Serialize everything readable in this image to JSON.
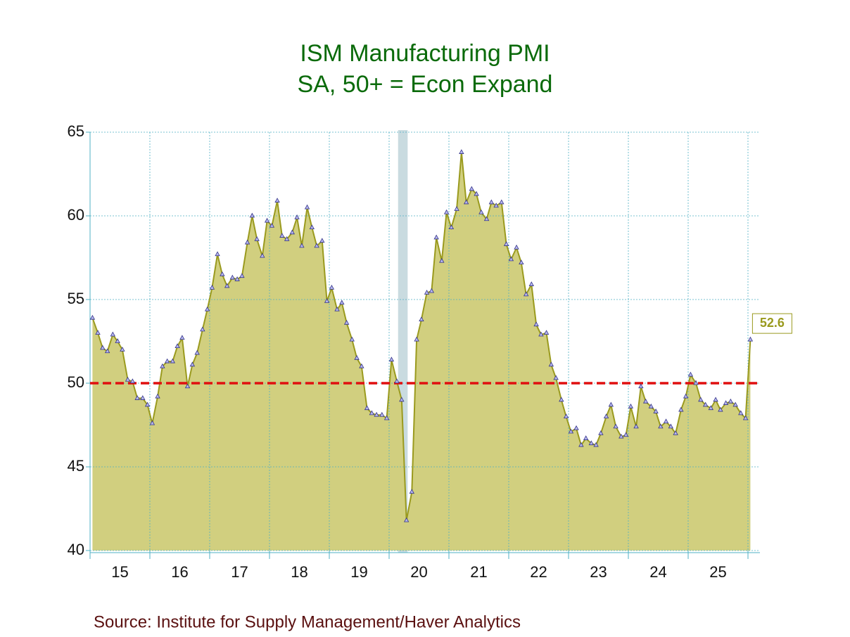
{
  "chart_data": {
    "type": "area",
    "title": "ISM Manufacturing PMI",
    "subtitle": "SA, 50+ = Econ Expand",
    "source": "Source:  Institute for Supply Management/Haver Analytics",
    "x": [
      2015.04,
      2015.13,
      2015.21,
      2015.29,
      2015.38,
      2015.46,
      2015.54,
      2015.63,
      2015.71,
      2015.79,
      2015.88,
      2015.96,
      2016.04,
      2016.13,
      2016.21,
      2016.29,
      2016.38,
      2016.46,
      2016.54,
      2016.63,
      2016.71,
      2016.79,
      2016.88,
      2016.96,
      2017.04,
      2017.13,
      2017.21,
      2017.29,
      2017.38,
      2017.46,
      2017.54,
      2017.63,
      2017.71,
      2017.79,
      2017.88,
      2017.96,
      2018.04,
      2018.13,
      2018.21,
      2018.29,
      2018.38,
      2018.46,
      2018.54,
      2018.63,
      2018.71,
      2018.79,
      2018.88,
      2018.96,
      2019.04,
      2019.13,
      2019.21,
      2019.29,
      2019.38,
      2019.46,
      2019.54,
      2019.63,
      2019.71,
      2019.79,
      2019.88,
      2019.96,
      2020.04,
      2020.13,
      2020.21,
      2020.29,
      2020.38,
      2020.46,
      2020.54,
      2020.63,
      2020.71,
      2020.79,
      2020.88,
      2020.96,
      2021.04,
      2021.13,
      2021.21,
      2021.29,
      2021.38,
      2021.46,
      2021.54,
      2021.63,
      2021.71,
      2021.79,
      2021.88,
      2021.96,
      2022.04,
      2022.13,
      2022.21,
      2022.29,
      2022.38,
      2022.46,
      2022.54,
      2022.63,
      2022.71,
      2022.79,
      2022.88,
      2022.96,
      2023.04,
      2023.13,
      2023.21,
      2023.29,
      2023.38,
      2023.46,
      2023.54,
      2023.63,
      2023.71,
      2023.79,
      2023.88,
      2023.96,
      2024.04,
      2024.13,
      2024.21,
      2024.29,
      2024.38,
      2024.46,
      2024.54,
      2024.63,
      2024.71,
      2024.79,
      2024.88,
      2024.96,
      2025.04,
      2025.13,
      2025.21,
      2025.29,
      2025.38,
      2025.46,
      2025.54,
      2025.63,
      2025.71,
      2025.79,
      2025.88,
      2025.96,
      2026.04
    ],
    "values": [
      53.9,
      53.0,
      52.1,
      51.9,
      52.9,
      52.5,
      52.0,
      50.2,
      50.1,
      49.1,
      49.1,
      48.7,
      47.6,
      49.2,
      51.0,
      51.3,
      51.3,
      52.2,
      52.7,
      49.8,
      51.1,
      51.8,
      53.2,
      54.4,
      55.7,
      57.7,
      56.5,
      55.8,
      56.3,
      56.2,
      56.4,
      58.4,
      60.0,
      58.6,
      57.6,
      59.7,
      59.4,
      60.9,
      58.8,
      58.6,
      59.0,
      59.9,
      58.2,
      60.5,
      59.3,
      58.2,
      58.5,
      54.9,
      55.7,
      54.4,
      54.8,
      53.6,
      52.6,
      51.5,
      51.0,
      48.5,
      48.2,
      48.1,
      48.1,
      47.9,
      51.4,
      50.1,
      49.0,
      41.8,
      43.5,
      52.6,
      53.8,
      55.4,
      55.5,
      58.7,
      57.3,
      60.2,
      59.3,
      60.4,
      63.8,
      60.8,
      61.6,
      61.3,
      60.2,
      59.8,
      60.8,
      60.6,
      60.8,
      58.3,
      57.4,
      58.1,
      57.2,
      55.3,
      55.9,
      53.5,
      52.9,
      53.0,
      51.1,
      50.3,
      49.0,
      48.0,
      47.1,
      47.3,
      46.3,
      46.7,
      46.4,
      46.3,
      47.0,
      48.0,
      48.7,
      47.4,
      46.8,
      46.9,
      48.6,
      47.4,
      49.8,
      48.9,
      48.6,
      48.3,
      47.4,
      47.7,
      47.4,
      47.0,
      48.4,
      49.2,
      50.5,
      50.0,
      49.0,
      48.7,
      48.5,
      49.0,
      48.4,
      48.8,
      48.9,
      48.7,
      48.2,
      47.9,
      52.6
    ],
    "value_labels": [
      null,
      null,
      null,
      null,
      null,
      null,
      null,
      null,
      null,
      null,
      null,
      null,
      null,
      null,
      null,
      null,
      null,
      null,
      null,
      null,
      null,
      null,
      null,
      null,
      null,
      null,
      null,
      null,
      null,
      null,
      null,
      null,
      null,
      null,
      null,
      null,
      null,
      null,
      null,
      null,
      null,
      null,
      null,
      null,
      null,
      null,
      null,
      null,
      null,
      null,
      null,
      null,
      null,
      null,
      null,
      null,
      null,
      null,
      null,
      null,
      null,
      null,
      null,
      null,
      null,
      null,
      null,
      null,
      null,
      null,
      null,
      null,
      null,
      null,
      null,
      null,
      null,
      null,
      null,
      null,
      null,
      null,
      null,
      null,
      null,
      null,
      null,
      null,
      null,
      null,
      null,
      null,
      null,
      null,
      null,
      null,
      null,
      null,
      null,
      null,
      null,
      null,
      null,
      null,
      null,
      null,
      null,
      null,
      null,
      null,
      null,
      null,
      null,
      null,
      null,
      null,
      null,
      null,
      null,
      null,
      null,
      null,
      null,
      null,
      null,
      null,
      null,
      null,
      null,
      null,
      null,
      null,
      "52.6"
    ],
    "color": "#9a9a1e",
    "fill": "#d1cf7f",
    "reference_line": 50,
    "reference_color": "#e01010",
    "shading": [
      [
        2020.15,
        2020.31
      ]
    ],
    "xlim": [
      2015,
      2026.2
    ],
    "xticks": [
      2015,
      2016,
      2017,
      2018,
      2019,
      2020,
      2021,
      2022,
      2023,
      2024,
      2025,
      2026
    ],
    "xlabels": [
      {
        "value": 2015.5,
        "label": "15"
      },
      {
        "value": 2016.5,
        "label": "16"
      },
      {
        "value": 2017.5,
        "label": "17"
      },
      {
        "value": 2018.5,
        "label": "18"
      },
      {
        "value": 2019.5,
        "label": "19"
      },
      {
        "value": 2020.5,
        "label": "20"
      },
      {
        "value": 2021.5,
        "label": "21"
      },
      {
        "value": 2022.5,
        "label": "22"
      },
      {
        "value": 2023.5,
        "label": "23"
      },
      {
        "value": 2024.5,
        "label": "24"
      },
      {
        "value": 2025.5,
        "label": "25"
      }
    ],
    "ylim": [
      40,
      65
    ],
    "yticks": [
      40,
      45,
      50,
      55,
      60,
      65
    ],
    "grid": true
  }
}
